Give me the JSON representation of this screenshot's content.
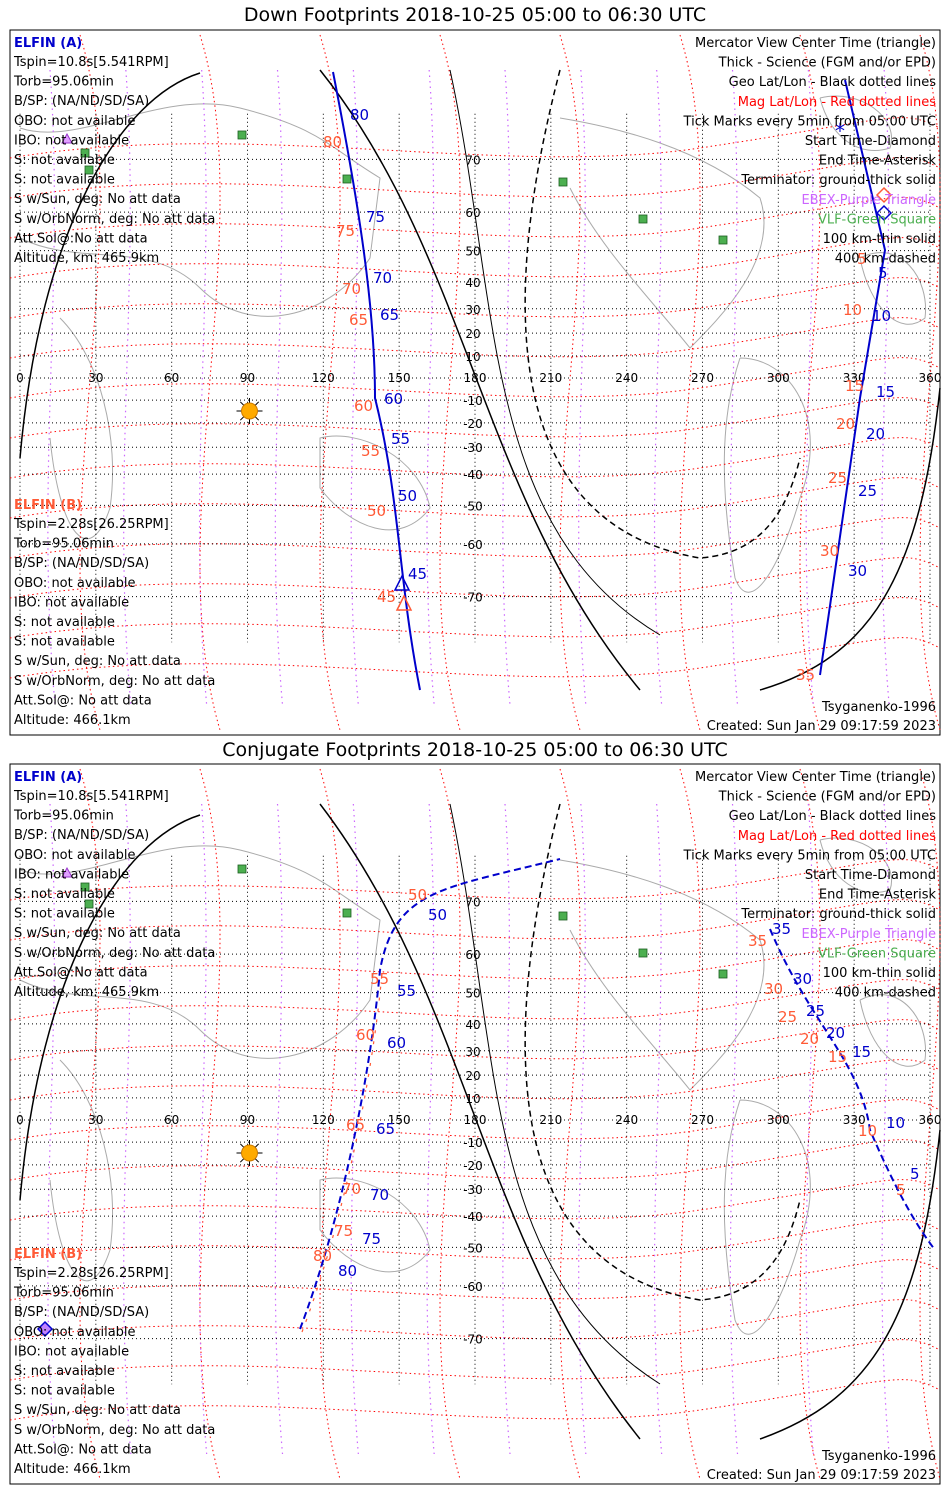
{
  "colors": {
    "elfin_a": "#0000cc",
    "elfin_b": "#ff5a36",
    "mag_grid": "#ff0000",
    "geo_grid": "#000000",
    "geo_meridian": "#cc66ff",
    "vlf_station": "#4caf50",
    "sun": "#ffaa00",
    "coast": "#aaaaaa"
  },
  "panels": [
    {
      "title": "Down Footprints 2018-10-25 05:00 to 06:30 UTC",
      "left": {
        "a_title": "ELFIN (A)",
        "a_lines": [
          "Tspin=10.8s[5.541RPM]",
          "Torb=95.06min",
          "B/SP: (NA/ND/SD/SA)",
          "OBO: not available",
          "IBO: not available",
          "S: not available",
          "S: not available",
          "S w/Sun, deg: No att data",
          "S w/OrbNorm, deg: No att data",
          "Att.Sol@:No att data",
          "Altitude, km: 465.9km"
        ],
        "b_title": "ELFIN (B)",
        "b_lines": [
          "Tspin=2.28s[26.25RPM]",
          "Torb=95.06min",
          "B/SP: (NA/ND/SD/SA)",
          "OBO: not available",
          "IBO: not available",
          "S: not available",
          "S: not available",
          "S w/Sun, deg: No att data",
          "S w/OrbNorm, deg: No att data",
          "Att.Sol@: No att data",
          "Altitude: 466.1km"
        ]
      },
      "right_lines": [
        {
          "text": "Mercator View Center Time (triangle)",
          "color": "#000000"
        },
        {
          "text": "Thick - Science (FGM and/or EPD)",
          "color": "#000000"
        },
        {
          "text": "Geo Lat/Lon - Black dotted lines",
          "color": "#000000"
        },
        {
          "text": "Mag Lat/Lon - Red dotted lines",
          "color": "#ff0000"
        },
        {
          "text": "Tick Marks every 5min from 05:00 UTC",
          "color": "#000000"
        },
        {
          "text": "Start Time-Diamond",
          "color": "#000000"
        },
        {
          "text": "End Time-Asterisk",
          "color": "#000000"
        },
        {
          "text": "Terminator: ground-thick solid",
          "color": "#000000"
        },
        {
          "text": "EBEX-Purple Triangle",
          "color": "#cc66ff"
        },
        {
          "text": "VLF-Green Square",
          "color": "#4caf50"
        },
        {
          "text": "100 km-thin solid",
          "color": "#000000"
        },
        {
          "text": "400 km-dashed",
          "color": "#000000"
        }
      ],
      "model": "Tsyganenko-1996",
      "created": "Created: Sun Jan 29 09:17:59 2023",
      "lon_labels": [
        "0",
        "30",
        "60",
        "90",
        "120",
        "150",
        "180",
        "210",
        "240",
        "270",
        "300",
        "330",
        "360"
      ],
      "lat_labels": [
        "70",
        "60",
        "50",
        "40",
        "30",
        "20",
        "10",
        "-10",
        "-20",
        "-30",
        "-40",
        "-50",
        "-60",
        "-70"
      ],
      "track_a_ticks": [
        "80",
        "75",
        "70",
        "65",
        "60",
        "55",
        "50",
        "45"
      ],
      "track_b_ticks": [
        "80",
        "75",
        "70",
        "65",
        "60",
        "55",
        "50",
        "45"
      ],
      "track_a_ticks_right": [
        "5",
        "10",
        "15",
        "20",
        "25",
        "30"
      ],
      "track_b_ticks_right": [
        "5",
        "10",
        "15",
        "20",
        "25",
        "30",
        "35"
      ]
    },
    {
      "title": "Conjugate Footprints 2018-10-25 05:00 to 06:30 UTC",
      "left": {
        "a_title": "ELFIN (A)",
        "a_lines": [
          "Tspin=10.8s[5.541RPM]",
          "Torb=95.06min",
          "B/SP: (NA/ND/SD/SA)",
          "OBO: not available",
          "IBO: not available",
          "S: not available",
          "S: not available",
          "S w/Sun, deg: No att data",
          "S w/OrbNorm, deg: No att data",
          "Att.Sol@:No att data",
          "Altitude, km: 465.9km"
        ],
        "b_title": "ELFIN (B)",
        "b_lines": [
          "Tspin=2.28s[26.25RPM]",
          "Torb=95.06min",
          "B/SP: (NA/ND/SD/SA)",
          "OBO: not available",
          "IBO: not available",
          "S: not available",
          "S: not available",
          "S w/Sun, deg: No att data",
          "S w/OrbNorm, deg: No att data",
          "Att.Sol@: No att data",
          "Altitude: 466.1km"
        ]
      },
      "right_lines": [
        {
          "text": "Mercator View Center Time (triangle)",
          "color": "#000000"
        },
        {
          "text": "Thick - Science (FGM and/or EPD)",
          "color": "#000000"
        },
        {
          "text": "Geo Lat/Lon - Black dotted lines",
          "color": "#000000"
        },
        {
          "text": "Mag Lat/Lon - Red dotted lines",
          "color": "#ff0000"
        },
        {
          "text": "Tick Marks every 5min from 05:00 UTC",
          "color": "#000000"
        },
        {
          "text": "Start Time-Diamond",
          "color": "#000000"
        },
        {
          "text": "End Time-Asterisk",
          "color": "#000000"
        },
        {
          "text": "Terminator: ground-thick solid",
          "color": "#000000"
        },
        {
          "text": "EBEX-Purple Triangle",
          "color": "#cc66ff"
        },
        {
          "text": "VLF-Green Square",
          "color": "#4caf50"
        },
        {
          "text": "100 km-thin solid",
          "color": "#000000"
        },
        {
          "text": "400 km-dashed",
          "color": "#000000"
        }
      ],
      "model": "Tsyganenko-1996",
      "created": "Created: Sun Jan 29 09:17:59 2023",
      "lon_labels": [
        "0",
        "30",
        "60",
        "90",
        "120",
        "150",
        "180",
        "210",
        "240",
        "270",
        "300",
        "330",
        "360"
      ],
      "lat_labels": [
        "70",
        "60",
        "50",
        "40",
        "30",
        "20",
        "10",
        "-10",
        "-20",
        "-30",
        "-40",
        "-50",
        "-60",
        "-70"
      ],
      "track_a_ticks": [
        "50",
        "55",
        "60",
        "65",
        "70",
        "75",
        "80"
      ],
      "track_b_ticks": [
        "50",
        "55",
        "60",
        "65",
        "70",
        "75",
        "80"
      ],
      "track_a_ticks_right": [
        "35",
        "30",
        "25",
        "20",
        "15",
        "10",
        "5"
      ],
      "track_b_ticks_right": [
        "35",
        "30",
        "25",
        "20",
        "15",
        "10",
        "5"
      ]
    }
  ]
}
